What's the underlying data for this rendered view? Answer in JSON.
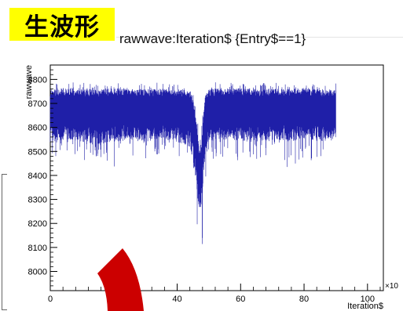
{
  "header": {
    "label": "生波形",
    "label_bg": "#ffff00"
  },
  "chart_data": {
    "type": "line",
    "title": "rawwave:Iteration$ {Entry$==1}",
    "xlabel": "Iteration$",
    "ylabel": "rawwave",
    "xlim": [
      0,
      105
    ],
    "ylim": [
      7920,
      8860
    ],
    "x_multiplier": "×10",
    "x_ticks": [
      0,
      20,
      40,
      60,
      80,
      100
    ],
    "x_tick_labels": [
      "0",
      "",
      "40",
      "60",
      "80",
      "100"
    ],
    "y_ticks": [
      8000,
      8100,
      8200,
      8300,
      8400,
      8500,
      8600,
      8700,
      8800
    ],
    "series_color": "#1f1fa8",
    "grid": false,
    "series": [
      {
        "x": [
          0,
          5,
          10,
          15,
          20,
          25,
          30,
          35,
          40,
          44,
          45,
          46,
          47,
          47.5,
          48,
          48.5,
          49,
          50,
          52,
          55,
          60,
          65,
          70,
          75,
          80,
          85,
          90
        ],
        "min": [
          8470,
          8500,
          8450,
          8480,
          8420,
          8470,
          8440,
          8500,
          8470,
          8460,
          8380,
          8200,
          8030,
          8060,
          8110,
          8270,
          8380,
          8490,
          8450,
          8480,
          8420,
          8460,
          8490,
          8430,
          8470,
          8450,
          8530
        ],
        "low": [
          8540,
          8550,
          8540,
          8530,
          8540,
          8550,
          8540,
          8550,
          8540,
          8520,
          8460,
          8360,
          8250,
          8270,
          8330,
          8430,
          8500,
          8540,
          8540,
          8550,
          8540,
          8540,
          8550,
          8540,
          8550,
          8540,
          8550
        ],
        "high": [
          8760,
          8765,
          8760,
          8760,
          8765,
          8760,
          8760,
          8762,
          8760,
          8755,
          8720,
          8640,
          8500,
          8520,
          8600,
          8700,
          8740,
          8760,
          8762,
          8760,
          8765,
          8760,
          8762,
          8760,
          8765,
          8760,
          8760
        ],
        "max": [
          8780,
          8790,
          8785,
          8790,
          8780,
          8795,
          8785,
          8790,
          8780,
          8775,
          8740,
          8680,
          8560,
          8580,
          8650,
          8740,
          8770,
          8780,
          8790,
          8785,
          8790,
          8780,
          8790,
          8785,
          8790,
          8780,
          8785
        ]
      }
    ]
  },
  "decor": {
    "arc_color": "#cc0000"
  }
}
